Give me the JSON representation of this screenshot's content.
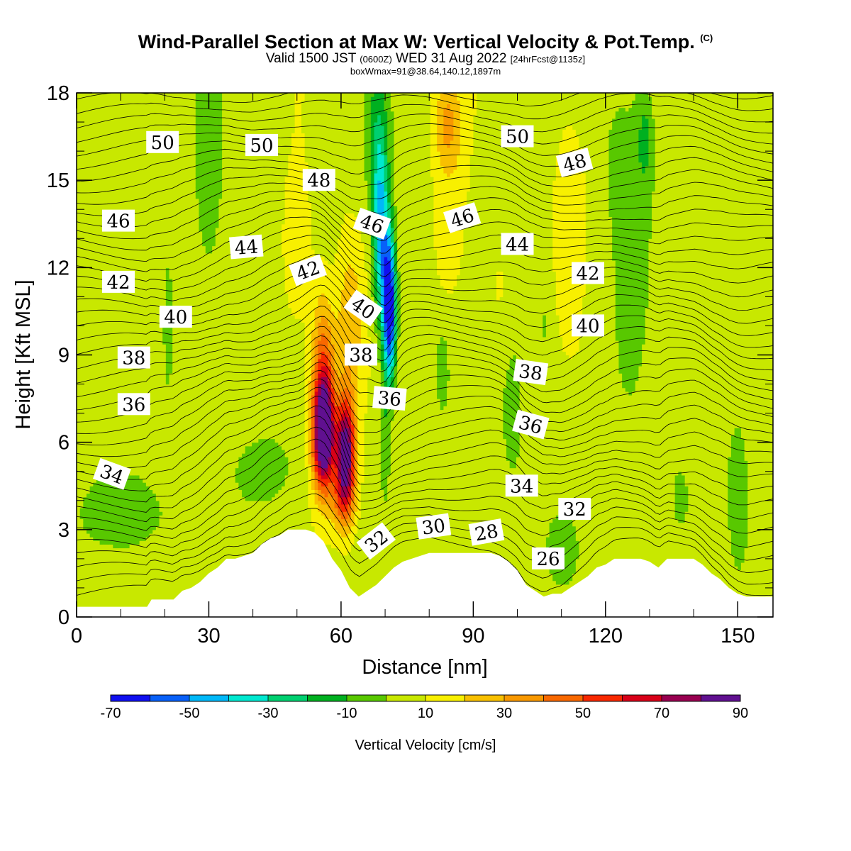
{
  "header": {
    "title": "Wind-Parallel Section at Max W: Vertical Velocity & Pot.Temp.",
    "copyright": "(C)",
    "valid_prefix": "Valid 1500 JST",
    "valid_zulu": "(0600Z)",
    "valid_date": "WED 31 Aug 2022",
    "forecast": "[24hrFcst@1135z]",
    "boxmax": "boxWmax=91@38.64,140.12,1897m"
  },
  "chart_data": {
    "type": "heatmap",
    "xlabel": "Distance [nm]",
    "ylabel": "Height [Kft MSL]",
    "xlim": [
      0,
      158
    ],
    "ylim": [
      0,
      18
    ],
    "x_ticks": [
      "0",
      "30",
      "60",
      "90",
      "120",
      "150"
    ],
    "x_tick_values": [
      0,
      30,
      60,
      90,
      120,
      150
    ],
    "y_ticks": [
      "0",
      "3",
      "6",
      "9",
      "12",
      "15",
      "18"
    ],
    "y_tick_values": [
      0,
      3,
      6,
      9,
      12,
      15,
      18
    ],
    "colorbar": {
      "label": "Vertical Velocity [cm/s]",
      "tick_labels": [
        "-70",
        "-50",
        "-30",
        "-10",
        "10",
        "30",
        "50",
        "70",
        "90"
      ],
      "tick_values": [
        -70,
        -50,
        -30,
        -10,
        10,
        30,
        50,
        70,
        90
      ],
      "levels": [
        -70,
        -60,
        -50,
        -40,
        -30,
        -20,
        -10,
        0,
        10,
        20,
        30,
        40,
        50,
        60,
        70,
        80,
        90
      ],
      "colors": [
        "#1010f0",
        "#0860f8",
        "#00b8f8",
        "#00e8d0",
        "#00d070",
        "#00b020",
        "#58c800",
        "#c8e800",
        "#f8f000",
        "#f8c000",
        "#f89800",
        "#f86800",
        "#f82800",
        "#d80018",
        "#980050",
        "#601090"
      ]
    },
    "terrain_kft": [
      [
        0,
        0.35
      ],
      [
        2,
        0.35
      ],
      [
        4,
        0.35
      ],
      [
        6,
        0.35
      ],
      [
        8,
        0.35
      ],
      [
        10,
        0.35
      ],
      [
        12,
        0.35
      ],
      [
        14,
        0.35
      ],
      [
        16,
        0.35
      ],
      [
        17,
        0.6
      ],
      [
        20,
        0.6
      ],
      [
        22,
        0.6
      ],
      [
        24,
        0.9
      ],
      [
        26,
        1.0
      ],
      [
        28,
        1.2
      ],
      [
        30,
        1.5
      ],
      [
        32,
        1.7
      ],
      [
        34,
        2.0
      ],
      [
        36,
        2.0
      ],
      [
        38,
        2.1
      ],
      [
        40,
        2.2
      ],
      [
        42,
        2.5
      ],
      [
        44,
        2.7
      ],
      [
        46,
        2.8
      ],
      [
        48,
        3.0
      ],
      [
        50,
        3.0
      ],
      [
        52,
        3.0
      ],
      [
        54,
        2.9
      ],
      [
        56,
        2.6
      ],
      [
        58,
        2.0
      ],
      [
        60,
        1.6
      ],
      [
        62,
        1.0
      ],
      [
        64,
        0.7
      ],
      [
        66,
        0.9
      ],
      [
        68,
        1.1
      ],
      [
        70,
        1.4
      ],
      [
        72,
        1.7
      ],
      [
        74,
        1.9
      ],
      [
        76,
        2.0
      ],
      [
        78,
        2.1
      ],
      [
        80,
        2.2
      ],
      [
        82,
        2.2
      ],
      [
        84,
        2.2
      ],
      [
        86,
        2.2
      ],
      [
        88,
        2.2
      ],
      [
        90,
        2.2
      ],
      [
        92,
        2.2
      ],
      [
        94,
        2.2
      ],
      [
        96,
        2.1
      ],
      [
        98,
        1.9
      ],
      [
        100,
        1.6
      ],
      [
        102,
        1.1
      ],
      [
        104,
        0.9
      ],
      [
        106,
        0.7
      ],
      [
        108,
        0.8
      ],
      [
        110,
        0.8
      ],
      [
        112,
        1.0
      ],
      [
        114,
        1.2
      ],
      [
        116,
        1.4
      ],
      [
        118,
        1.7
      ],
      [
        120,
        1.8
      ],
      [
        122,
        2.0
      ],
      [
        124,
        2.0
      ],
      [
        126,
        2.0
      ],
      [
        128,
        2.0
      ],
      [
        130,
        1.9
      ],
      [
        132,
        1.7
      ],
      [
        134,
        2.0
      ],
      [
        136,
        2.0
      ],
      [
        138,
        2.0
      ],
      [
        140,
        2.0
      ],
      [
        142,
        1.8
      ],
      [
        144,
        1.5
      ],
      [
        146,
        1.3
      ],
      [
        148,
        1.0
      ],
      [
        150,
        0.8
      ],
      [
        152,
        0.7
      ],
      [
        154,
        0.7
      ],
      [
        156,
        0.7
      ],
      [
        158,
        0.7
      ]
    ],
    "theta_labels": [
      {
        "text": "50",
        "x": 19.5,
        "y": 16.3,
        "angle": 0
      },
      {
        "text": "50",
        "x": 42,
        "y": 16.2,
        "angle": 0
      },
      {
        "text": "50",
        "x": 100,
        "y": 16.5,
        "angle": 0
      },
      {
        "text": "48",
        "x": 55,
        "y": 15.0,
        "angle": 0
      },
      {
        "text": "48",
        "x": 113,
        "y": 15.6,
        "angle": -15
      },
      {
        "text": "46",
        "x": 9.5,
        "y": 13.6,
        "angle": 0
      },
      {
        "text": "46",
        "x": 67,
        "y": 13.5,
        "angle": 20
      },
      {
        "text": "46",
        "x": 87.5,
        "y": 13.7,
        "angle": -18
      },
      {
        "text": "44",
        "x": 38.5,
        "y": 12.7,
        "angle": -5
      },
      {
        "text": "44",
        "x": 100,
        "y": 12.8,
        "angle": 0
      },
      {
        "text": "42",
        "x": 9.5,
        "y": 11.5,
        "angle": 0
      },
      {
        "text": "42",
        "x": 52.5,
        "y": 11.9,
        "angle": -20
      },
      {
        "text": "42",
        "x": 116,
        "y": 11.8,
        "angle": 0
      },
      {
        "text": "40",
        "x": 22.5,
        "y": 10.3,
        "angle": 0
      },
      {
        "text": "40",
        "x": 65,
        "y": 10.6,
        "angle": 35
      },
      {
        "text": "40",
        "x": 116,
        "y": 10.0,
        "angle": 0
      },
      {
        "text": "38",
        "x": 13,
        "y": 8.9,
        "angle": 0
      },
      {
        "text": "38",
        "x": 64.5,
        "y": 9.0,
        "angle": 0
      },
      {
        "text": "38",
        "x": 103,
        "y": 8.4,
        "angle": 8
      },
      {
        "text": "36",
        "x": 13,
        "y": 7.3,
        "angle": 0
      },
      {
        "text": "36",
        "x": 71,
        "y": 7.5,
        "angle": 5
      },
      {
        "text": "36",
        "x": 103,
        "y": 6.6,
        "angle": 15
      },
      {
        "text": "34",
        "x": 8,
        "y": 4.9,
        "angle": 20
      },
      {
        "text": "34",
        "x": 101,
        "y": 4.5,
        "angle": 0
      },
      {
        "text": "32",
        "x": 113,
        "y": 3.7,
        "angle": 0
      },
      {
        "text": "32",
        "x": 68,
        "y": 2.6,
        "angle": -38
      },
      {
        "text": "30",
        "x": 81,
        "y": 3.1,
        "angle": -8
      },
      {
        "text": "28",
        "x": 93,
        "y": 2.9,
        "angle": -10
      },
      {
        "text": "26",
        "x": 107,
        "y": 2.0,
        "angle": 0
      }
    ]
  }
}
